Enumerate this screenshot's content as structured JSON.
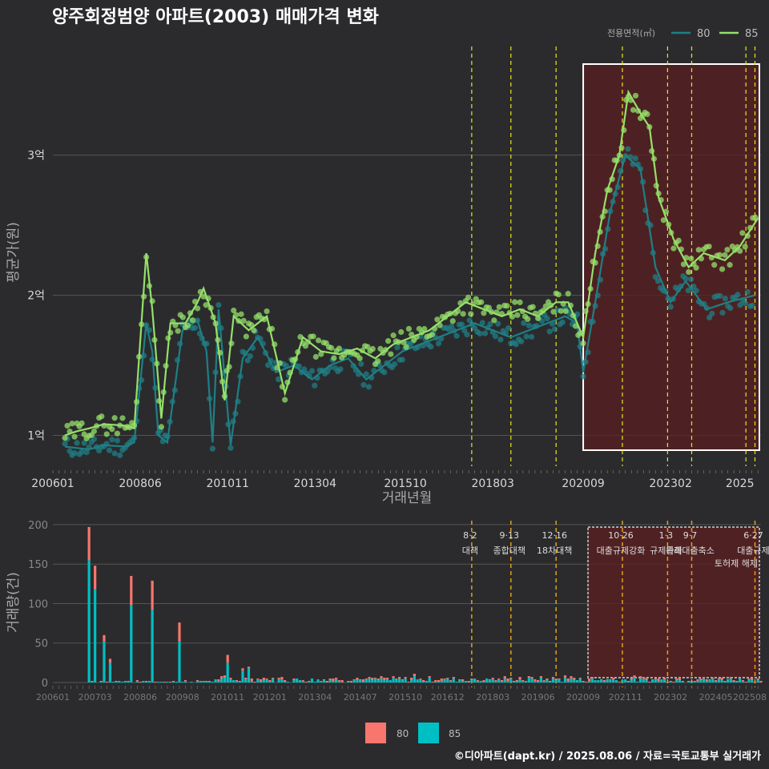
{
  "title": "양주회정범양 아파트(2003) 매매가격 변화",
  "footer": "©디아파트(dapt.kr) / 2025.08.06 / 자료=국토교통부 실거래가",
  "colors": {
    "background": "#2b2b2d",
    "series_80": "#1f7f86",
    "series_85": "#95e06a",
    "bar_80": "#f8766d",
    "bar_85": "#00bfc4",
    "policy_line": "#e6e61f",
    "policy_line_bottom": "#e0a020",
    "highlight_fill": "#5a1f20",
    "grid": "#555555"
  },
  "chart_data": [
    {
      "type": "line",
      "name": "price",
      "xlabel": "거래년월",
      "ylabel": "평균가(원)",
      "x_ticks": [
        "200601",
        "200806",
        "201011",
        "201304",
        "201510",
        "201803",
        "202009",
        "202302",
        "2025"
      ],
      "y_ticks": [
        {
          "value": 1,
          "label": "1억"
        },
        {
          "value": 2,
          "label": "2억"
        },
        {
          "value": 3,
          "label": "3억"
        }
      ],
      "xlim": [
        "2006-01",
        "2025-08"
      ],
      "ylim": [
        0.78,
        3.85
      ],
      "legend": {
        "title": "전용면적(㎡)",
        "position": "top-right",
        "entries": [
          "80",
          "85"
        ]
      },
      "series": [
        {
          "name": "80",
          "values": [
            [
              "2006-05",
              0.92
            ],
            [
              "2006-09",
              0.91
            ],
            [
              "2007-01",
              0.9
            ],
            [
              "2007-06",
              0.93
            ],
            [
              "2008-01",
              0.92
            ],
            [
              "2008-04",
              0.95
            ],
            [
              "2008-08",
              1.8
            ],
            [
              "2008-10",
              1.6
            ],
            [
              "2008-12",
              1.0
            ],
            [
              "2009-03",
              0.95
            ],
            [
              "2009-08",
              1.75
            ],
            [
              "2010-01",
              1.82
            ],
            [
              "2010-04",
              1.6
            ],
            [
              "2010-06",
              0.95
            ],
            [
              "2010-08",
              1.9
            ],
            [
              "2010-12",
              0.93
            ],
            [
              "2011-04",
              1.55
            ],
            [
              "2011-09",
              1.7
            ],
            [
              "2012-03",
              1.45
            ],
            [
              "2012-09",
              1.5
            ],
            [
              "2013-03",
              1.4
            ],
            [
              "2013-09",
              1.5
            ],
            [
              "2014-03",
              1.55
            ],
            [
              "2014-09",
              1.4
            ],
            [
              "2015-03",
              1.5
            ],
            [
              "2015-09",
              1.6
            ],
            [
              "2016-03",
              1.65
            ],
            [
              "2016-09",
              1.7
            ],
            [
              "2017-03",
              1.75
            ],
            [
              "2017-09",
              1.8
            ],
            [
              "2018-03",
              1.75
            ],
            [
              "2018-09",
              1.7
            ],
            [
              "2019-03",
              1.75
            ],
            [
              "2019-09",
              1.8
            ],
            [
              "2020-03",
              1.85
            ],
            [
              "2020-07",
              1.8
            ],
            [
              "2020-09",
              1.45
            ],
            [
              "2021-01",
              1.95
            ],
            [
              "2021-06",
              2.6
            ],
            [
              "2021-11",
              3.0
            ],
            [
              "2022-04",
              2.9
            ],
            [
              "2022-09",
              2.2
            ],
            [
              "2023-02",
              1.95
            ],
            [
              "2023-07",
              2.1
            ],
            [
              "2024-02",
              1.9
            ],
            [
              "2024-09",
              1.95
            ],
            [
              "2025-06",
              2.0
            ]
          ]
        },
        {
          "name": "85",
          "values": [
            [
              "2006-05",
              1.0
            ],
            [
              "2006-09",
              1.03
            ],
            [
              "2007-01",
              1.05
            ],
            [
              "2007-06",
              1.08
            ],
            [
              "2008-01",
              1.07
            ],
            [
              "2008-04",
              1.05
            ],
            [
              "2008-08",
              2.3
            ],
            [
              "2008-10",
              1.9
            ],
            [
              "2009-01",
              1.12
            ],
            [
              "2009-04",
              1.8
            ],
            [
              "2009-09",
              1.8
            ],
            [
              "2010-01",
              1.95
            ],
            [
              "2010-03",
              2.05
            ],
            [
              "2010-07",
              1.8
            ],
            [
              "2010-10",
              1.25
            ],
            [
              "2011-01",
              1.85
            ],
            [
              "2011-06",
              1.75
            ],
            [
              "2011-12",
              1.85
            ],
            [
              "2012-06",
              1.3
            ],
            [
              "2012-12",
              1.7
            ],
            [
              "2013-06",
              1.6
            ],
            [
              "2013-12",
              1.58
            ],
            [
              "2014-06",
              1.62
            ],
            [
              "2014-12",
              1.55
            ],
            [
              "2015-06",
              1.65
            ],
            [
              "2015-12",
              1.7
            ],
            [
              "2016-06",
              1.75
            ],
            [
              "2016-12",
              1.85
            ],
            [
              "2017-06",
              1.95
            ],
            [
              "2017-12",
              1.9
            ],
            [
              "2018-06",
              1.85
            ],
            [
              "2018-12",
              1.9
            ],
            [
              "2019-06",
              1.85
            ],
            [
              "2019-12",
              1.95
            ],
            [
              "2020-04",
              1.95
            ],
            [
              "2020-09",
              1.7
            ],
            [
              "2021-01",
              2.3
            ],
            [
              "2021-05",
              2.75
            ],
            [
              "2021-09",
              3.0
            ],
            [
              "2021-12",
              3.45
            ],
            [
              "2022-04",
              3.3
            ],
            [
              "2022-07",
              3.2
            ],
            [
              "2022-10",
              2.7
            ],
            [
              "2023-03",
              2.4
            ],
            [
              "2023-08",
              2.2
            ],
            [
              "2024-01",
              2.3
            ],
            [
              "2024-08",
              2.25
            ],
            [
              "2025-01",
              2.35
            ],
            [
              "2025-07",
              2.55
            ]
          ]
        }
      ],
      "policy_lines": [
        "2017-08",
        "2018-09",
        "2019-12",
        "2021-10",
        "2023-01",
        "2023-09",
        "2025-03",
        "2025-06"
      ],
      "highlight": [
        "2020-09",
        "2025-08"
      ]
    },
    {
      "type": "bar",
      "name": "volume",
      "ylabel": "거래량(건)",
      "x_ticks": [
        "200601",
        "200703",
        "200806",
        "200908",
        "201011",
        "201201",
        "201304",
        "201407",
        "201510",
        "201612",
        "201803",
        "201906",
        "202009",
        "202111",
        "202302",
        "202405",
        "202508"
      ],
      "y_ticks": [
        0,
        50,
        100,
        150,
        200
      ],
      "ylim": [
        0,
        205
      ],
      "legend": {
        "position": "bottom",
        "entries": [
          "80",
          "85"
        ]
      },
      "series": [
        {
          "name": "85",
          "values": [
            [
              "2007-01",
              155
            ],
            [
              "2007-03",
              118
            ],
            [
              "2007-06",
              52
            ],
            [
              "2007-08",
              25
            ],
            [
              "2008-03",
              98
            ],
            [
              "2008-10",
              92
            ],
            [
              "2009-07",
              52
            ],
            [
              "2010-11",
              25
            ],
            [
              "2011-04",
              15
            ],
            [
              "2011-06",
              18
            ],
            [
              "2016-01",
              8
            ],
            [
              "2018-03",
              4
            ],
            [
              "2020-03",
              6
            ],
            [
              "2021-06",
              3
            ],
            [
              "2024-05",
              2
            ],
            [
              "2025-05",
              3
            ]
          ]
        },
        {
          "name": "80",
          "values": [
            [
              "2007-01",
              42
            ],
            [
              "2007-03",
              30
            ],
            [
              "2007-06",
              8
            ],
            [
              "2007-08",
              5
            ],
            [
              "2008-03",
              37
            ],
            [
              "2008-10",
              37
            ],
            [
              "2009-07",
              24
            ],
            [
              "2010-11",
              10
            ],
            [
              "2011-04",
              3
            ],
            [
              "2011-06",
              2
            ],
            [
              "2016-01",
              3
            ],
            [
              "2018-03",
              2
            ],
            [
              "2020-03",
              3
            ],
            [
              "2021-06",
              1
            ],
            [
              "2024-05",
              1
            ],
            [
              "2025-05",
              2
            ]
          ]
        }
      ],
      "policy_annotations": [
        {
          "date": "2017-08",
          "text": "8·2 대책"
        },
        {
          "date": "2018-09",
          "text": "9·13 종합대책"
        },
        {
          "date": "2019-12",
          "text": "12·16 18차대책"
        },
        {
          "date": "2021-10",
          "text": "10·26 대출규제강화"
        },
        {
          "date": "2023-01",
          "text": "1·3 규제완화"
        },
        {
          "date": "2023-09",
          "text": "9·7 특례대출축소"
        },
        {
          "date": "2025-06",
          "text": "6·27 대출규제"
        }
      ],
      "highlight_labels": [
        "토허제 해제"
      ]
    }
  ]
}
